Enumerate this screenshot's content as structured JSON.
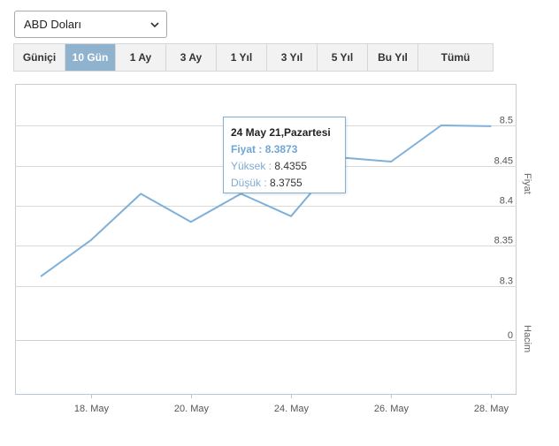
{
  "currency_select": {
    "value": "ABD Doları",
    "icon": "chevron-down-icon"
  },
  "range_tabs": [
    {
      "label": "Güniçi",
      "active": false
    },
    {
      "label": "10 Gün",
      "active": true
    },
    {
      "label": "1 Ay",
      "active": false
    },
    {
      "label": "3 Ay",
      "active": false
    },
    {
      "label": "1 Yıl",
      "active": false
    },
    {
      "label": "3 Yıl",
      "active": false
    },
    {
      "label": "5 Yıl",
      "active": false
    },
    {
      "label": "Bu Yıl",
      "active": false
    },
    {
      "label": "Tümü",
      "active": false
    }
  ],
  "tooltip": {
    "date": "24 May 21,Pazartesi",
    "price_label": "Fiyat :",
    "price_value": "8.3873",
    "high_label": "Yüksek :",
    "high_value": "8.4355",
    "low_label": "Düşük :",
    "low_value": "8.3755"
  },
  "colors": {
    "line": "#7fb0d9",
    "active_tab": "#8fb3cf",
    "tooltip_border": "#7fb0d9"
  },
  "chart_data": {
    "type": "line",
    "title": "",
    "x": [
      "2021-05-17",
      "2021-05-18",
      "2021-05-19",
      "2021-05-20",
      "2021-05-21",
      "2021-05-24",
      "2021-05-25",
      "2021-05-26",
      "2021-05-27",
      "2021-05-28"
    ],
    "series": [
      {
        "values": [
          8.312,
          8.357,
          8.415,
          8.38,
          8.415,
          8.387,
          8.46,
          8.455,
          8.5,
          8.499
        ]
      }
    ],
    "x_tick_labels": [
      "18. May",
      "20. May",
      "24. May",
      "26. May",
      "28. May"
    ],
    "y_tick_labels": [
      "8.3",
      "8.35",
      "8.4",
      "8.45",
      "8.5"
    ],
    "ylim": [
      8.3,
      8.5
    ],
    "ylabel": "Fiyat",
    "volume_pane": {
      "ylabel": "Hacim",
      "tick_labels": [
        "0"
      ]
    },
    "grid": true
  }
}
